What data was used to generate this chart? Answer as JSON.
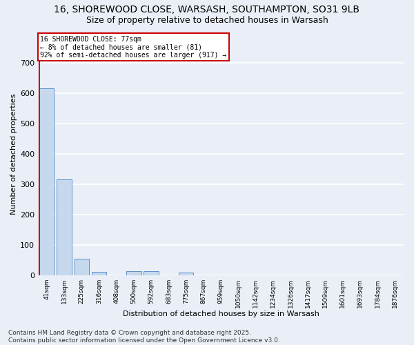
{
  "title_line1": "16, SHOREWOOD CLOSE, WARSASH, SOUTHAMPTON, SO31 9LB",
  "title_line2": "Size of property relative to detached houses in Warsash",
  "xlabel": "Distribution of detached houses by size in Warsash",
  "ylabel": "Number of detached properties",
  "categories": [
    "41sqm",
    "133sqm",
    "225sqm",
    "316sqm",
    "408sqm",
    "500sqm",
    "592sqm",
    "683sqm",
    "775sqm",
    "867sqm",
    "959sqm",
    "1050sqm",
    "1142sqm",
    "1234sqm",
    "1326sqm",
    "1417sqm",
    "1509sqm",
    "1601sqm",
    "1693sqm",
    "1784sqm",
    "1876sqm"
  ],
  "values": [
    617,
    316,
    55,
    11,
    0,
    13,
    14,
    0,
    8,
    0,
    0,
    0,
    0,
    0,
    0,
    0,
    0,
    0,
    0,
    0,
    0
  ],
  "bar_color": "#c5d8ee",
  "bar_edgecolor": "#5b8fc9",
  "annotation_text": "16 SHOREWOOD CLOSE: 77sqm\n← 8% of detached houses are smaller (81)\n92% of semi-detached houses are larger (917) →",
  "annotation_box_color": "#ffffff",
  "annotation_box_edgecolor": "#cc0000",
  "vline_x": 0,
  "vline_color": "#cc0000",
  "ylim": [
    0,
    800
  ],
  "yticks": [
    0,
    100,
    200,
    300,
    400,
    500,
    600,
    700
  ],
  "background_color": "#eaeff7",
  "grid_color": "#ffffff",
  "footer_text": "Contains HM Land Registry data © Crown copyright and database right 2025.\nContains public sector information licensed under the Open Government Licence v3.0.",
  "title_fontsize": 10,
  "subtitle_fontsize": 9,
  "annotation_fontsize": 7,
  "footer_fontsize": 6.5
}
